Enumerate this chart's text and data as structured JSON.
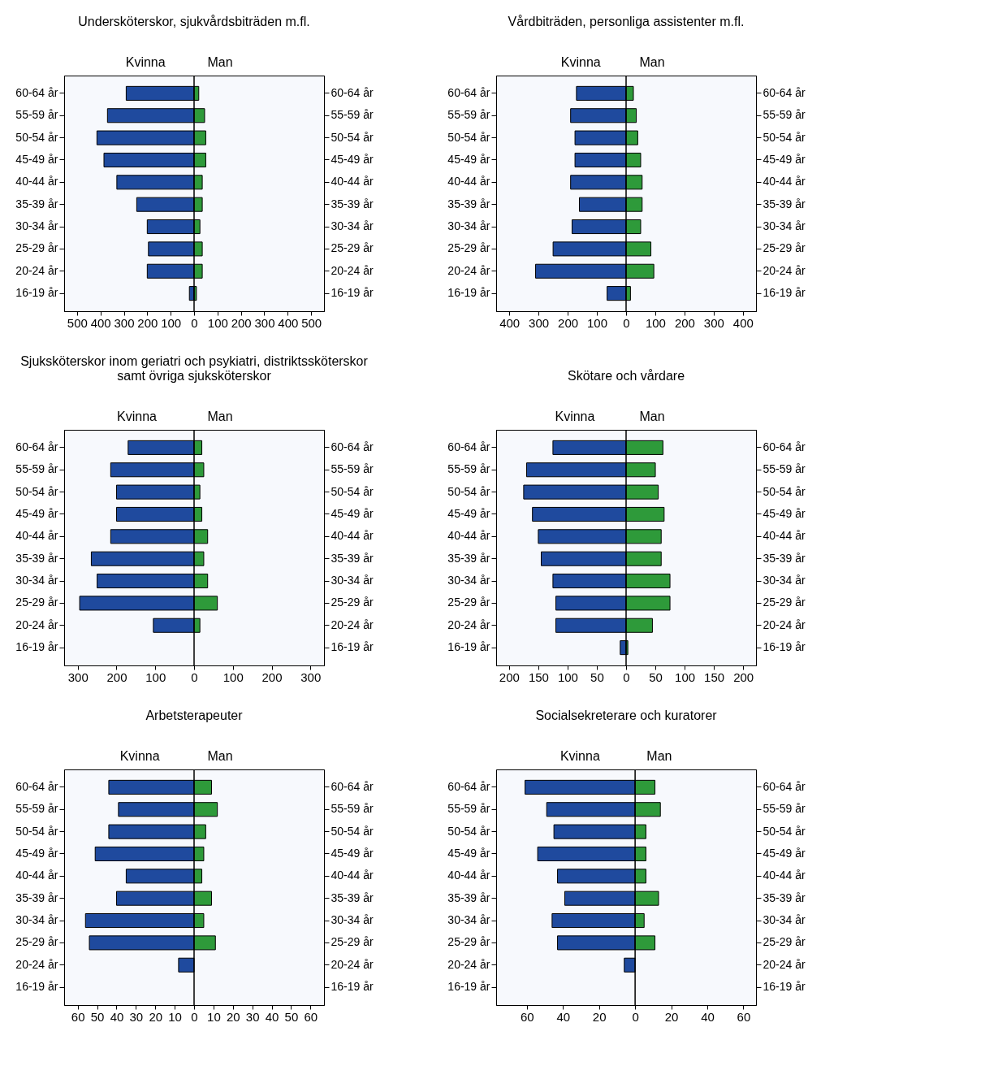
{
  "chart_data": [
    {
      "type": "bar",
      "orientation": "horizontal",
      "stacked": true,
      "title": "Undersköterskor, sjukvårdsbiträden m.fl.",
      "categories": [
        "60-64 år",
        "55-59 år",
        "50-54 år",
        "45-49 år",
        "40-44 år",
        "35-39 år",
        "30-34 år",
        "25-29 år",
        "20-24 år",
        "16-19 år"
      ],
      "series": [
        {
          "name": "Kvinna",
          "color": "#1f4a9e",
          "values": [
            -290,
            -370,
            -415,
            -385,
            -330,
            -245,
            -200,
            -195,
            -200,
            -20
          ]
        },
        {
          "name": "Man",
          "color": "#2e9a3a",
          "values": [
            20,
            45,
            50,
            50,
            35,
            35,
            25,
            35,
            35,
            10
          ]
        }
      ],
      "xlim": [
        -555,
        555
      ],
      "xticks": [
        {
          "value": -500,
          "label": "500"
        },
        {
          "value": -400,
          "label": "400"
        },
        {
          "value": -300,
          "label": "300"
        },
        {
          "value": -200,
          "label": "200"
        },
        {
          "value": -100,
          "label": "100"
        },
        0,
        100,
        200,
        300,
        400,
        500
      ],
      "ref_lines": [
        {
          "axis": "x",
          "value": 0
        }
      ]
    },
    {
      "type": "bar",
      "orientation": "horizontal",
      "stacked": true,
      "title": "Vårdbiträden, personliga assistenter m.fl.",
      "categories": [
        "60-64 år",
        "55-59 år",
        "50-54 år",
        "45-49 år",
        "40-44 år",
        "35-39 år",
        "30-34 år",
        "25-29 år",
        "20-24 år",
        "16-19 år"
      ],
      "series": [
        {
          "name": "Kvinna",
          "color": "#1f4a9e",
          "values": [
            -170,
            -190,
            -175,
            -175,
            -190,
            -160,
            -185,
            -250,
            -310,
            -65
          ]
        },
        {
          "name": "Man",
          "color": "#2e9a3a",
          "values": [
            25,
            35,
            40,
            50,
            55,
            55,
            50,
            85,
            95,
            15
          ]
        }
      ],
      "xlim": [
        -445,
        445
      ],
      "xticks": [
        {
          "value": -400,
          "label": "400"
        },
        {
          "value": -300,
          "label": "300"
        },
        {
          "value": -200,
          "label": "200"
        },
        {
          "value": -100,
          "label": "100"
        },
        0,
        100,
        200,
        300,
        400
      ],
      "ref_lines": [
        {
          "axis": "x",
          "value": 0
        }
      ]
    },
    {
      "type": "bar",
      "orientation": "horizontal",
      "stacked": true,
      "title": "Sjuksköterskor inom geriatri och psykiatri, distriktssköterskor\nsamt övriga sjuksköterskor",
      "categories": [
        "60-64 år",
        "55-59 år",
        "50-54 år",
        "45-49 år",
        "40-44 år",
        "35-39 år",
        "30-34 år",
        "25-29 år",
        "20-24 år",
        "16-19 år"
      ],
      "series": [
        {
          "name": "Kvinna",
          "color": "#1f4a9e",
          "values": [
            -170,
            -215,
            -200,
            -200,
            -215,
            -265,
            -250,
            -295,
            -105,
            null
          ]
        },
        {
          "name": "Man",
          "color": "#2e9a3a",
          "values": [
            20,
            25,
            15,
            20,
            35,
            25,
            35,
            60,
            15,
            null
          ]
        }
      ],
      "xlim": [
        -335,
        335
      ],
      "xticks": [
        {
          "value": -300,
          "label": "300"
        },
        {
          "value": -200,
          "label": "200"
        },
        {
          "value": -100,
          "label": "100"
        },
        0,
        100,
        200,
        300
      ],
      "ref_lines": [
        {
          "axis": "x",
          "value": 0
        }
      ]
    },
    {
      "type": "bar",
      "orientation": "horizontal",
      "stacked": true,
      "title": "Skötare och vårdare",
      "categories": [
        "60-64 år",
        "55-59 år",
        "50-54 år",
        "45-49 år",
        "40-44 år",
        "35-39 år",
        "30-34 år",
        "25-29 år",
        "20-24 år",
        "16-19 år"
      ],
      "series": [
        {
          "name": "Kvinna",
          "color": "#1f4a9e",
          "values": [
            -125,
            -170,
            -175,
            -160,
            -150,
            -145,
            -125,
            -120,
            -120,
            -10
          ]
        },
        {
          "name": "Man",
          "color": "#2e9a3a",
          "values": [
            63,
            50,
            55,
            65,
            60,
            60,
            75,
            75,
            45,
            3
          ]
        }
      ],
      "xlim": [
        -222,
        222
      ],
      "xticks": [
        {
          "value": -200,
          "label": "200"
        },
        {
          "value": -150,
          "label": "150"
        },
        {
          "value": -100,
          "label": "100"
        },
        {
          "value": -50,
          "label": "50"
        },
        0,
        50,
        100,
        150,
        200
      ],
      "ref_lines": [
        {
          "axis": "x",
          "value": 0
        }
      ]
    },
    {
      "type": "bar",
      "orientation": "horizontal",
      "stacked": true,
      "title": "Arbetsterapeuter",
      "categories": [
        "60-64 år",
        "55-59 år",
        "50-54 år",
        "45-49 år",
        "40-44 år",
        "35-39 år",
        "30-34 år",
        "25-29 år",
        "20-24 år",
        "16-19 år"
      ],
      "series": [
        {
          "name": "Kvinna",
          "color": "#1f4a9e",
          "values": [
            -44,
            -39,
            -44,
            -51,
            -35,
            -40,
            -56,
            -54,
            -8,
            null
          ]
        },
        {
          "name": "Man",
          "color": "#2e9a3a",
          "values": [
            9,
            12,
            6,
            5,
            4,
            9,
            5,
            11,
            null,
            null
          ]
        }
      ],
      "xlim": [
        -67,
        67
      ],
      "xticks": [
        {
          "value": -60,
          "label": "60"
        },
        {
          "value": -50,
          "label": "50"
        },
        {
          "value": -40,
          "label": "40"
        },
        {
          "value": -30,
          "label": "30"
        },
        {
          "value": -20,
          "label": "20"
        },
        {
          "value": -10,
          "label": "10"
        },
        0,
        10,
        20,
        30,
        40,
        50,
        60
      ],
      "ref_lines": [
        {
          "axis": "x",
          "value": 0
        }
      ]
    },
    {
      "type": "bar",
      "orientation": "horizontal",
      "stacked": true,
      "title": "Socialsekreterare och kuratorer",
      "categories": [
        "60-64 år",
        "55-59 år",
        "50-54 år",
        "45-49 år",
        "40-44 år",
        "35-39 år",
        "30-34 år",
        "25-29 år",
        "20-24 år",
        "16-19 år"
      ],
      "series": [
        {
          "name": "Kvinna",
          "color": "#1f4a9e",
          "values": [
            -61,
            -49,
            -45,
            -54,
            -43,
            -39,
            -46,
            -43,
            -6,
            null
          ]
        },
        {
          "name": "Man",
          "color": "#2e9a3a",
          "values": [
            11,
            14,
            6,
            6,
            6,
            13,
            5,
            11,
            null,
            null
          ]
        }
      ],
      "xlim": [
        -77,
        67
      ],
      "xticks": [
        {
          "value": -60,
          "label": "60"
        },
        {
          "value": -40,
          "label": "40"
        },
        {
          "value": -20,
          "label": "20"
        },
        0,
        20,
        40,
        60
      ],
      "ref_lines": [
        {
          "axis": "x",
          "value": 0
        }
      ]
    }
  ]
}
